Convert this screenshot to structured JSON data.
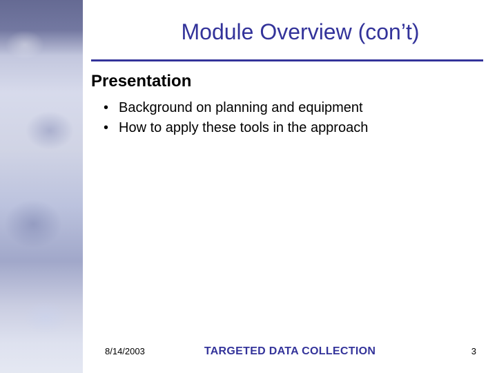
{
  "colors": {
    "title": "#33339a",
    "rule": "#33339a",
    "body_text": "#000000",
    "footer_text": "#000000",
    "footer_center": "#33339a",
    "background": "#ffffff"
  },
  "typography": {
    "title_fontsize": 32,
    "section_fontsize": 24,
    "bullet_fontsize": 20,
    "footer_fontsize": 13,
    "footer_center_fontsize": 16
  },
  "slide": {
    "title": "Module Overview (con’t)",
    "section_heading": "Presentation",
    "bullets": [
      "Background on planning and equipment",
      "How to apply these tools in the approach"
    ]
  },
  "footer": {
    "date": "8/14/2003",
    "center": "TARGETED DATA COLLECTION",
    "page": "3"
  }
}
